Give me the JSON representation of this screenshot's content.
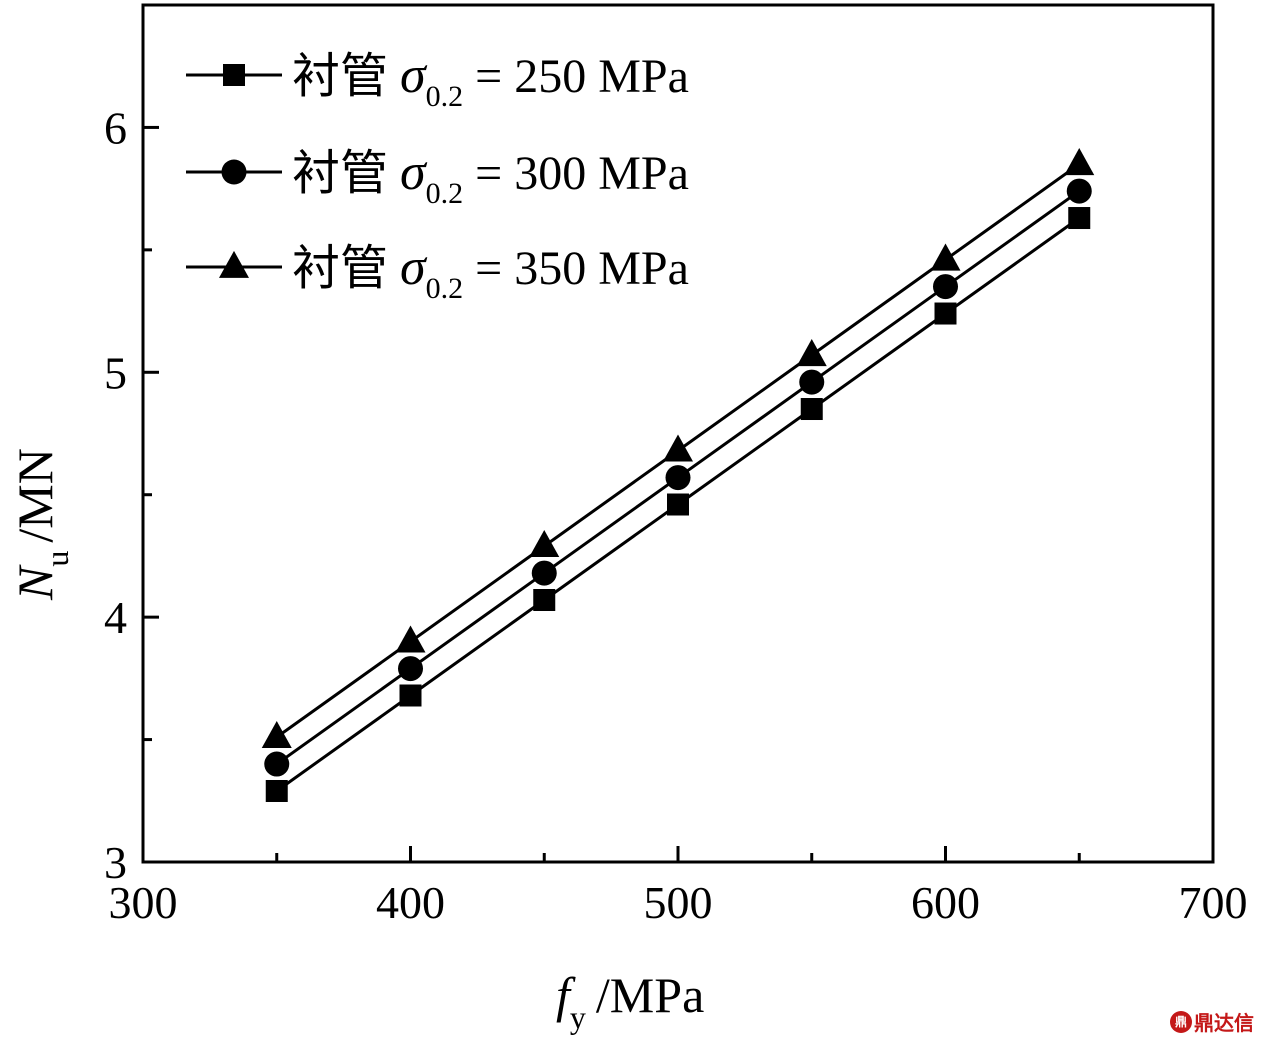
{
  "chart_data": {
    "type": "line",
    "x": [
      350,
      400,
      450,
      500,
      550,
      600,
      650
    ],
    "xlabel_main": "f",
    "xlabel_sub": "y",
    "xlabel_unit": "/MPa",
    "ylabel_main": "N",
    "ylabel_sub": "u",
    "ylabel_unit": "/MN",
    "xlim": [
      300,
      700
    ],
    "ylim": [
      3,
      6.5
    ],
    "xticks": [
      300,
      400,
      500,
      600,
      700
    ],
    "yticks": [
      3,
      4,
      5,
      6
    ],
    "yminor": [
      3.5,
      4.5,
      5.5
    ],
    "xminor": [
      350,
      450,
      550,
      650
    ],
    "grid": false,
    "legend_position": "top-left",
    "series": [
      {
        "name": "衬管 σ0.2 = 250 MPa",
        "label_prefix": "衬管 ",
        "label_sigma": "σ",
        "label_sub": "0.2",
        "label_suffix": " = 250 MPa",
        "marker": "square",
        "values": [
          3.29,
          3.68,
          4.07,
          4.46,
          4.85,
          5.24,
          5.63
        ]
      },
      {
        "name": "衬管 σ0.2 = 300 MPa",
        "label_prefix": "衬管 ",
        "label_sigma": "σ",
        "label_sub": "0.2",
        "label_suffix": " = 300 MPa",
        "marker": "circle",
        "values": [
          3.4,
          3.79,
          4.18,
          4.57,
          4.96,
          5.35,
          5.74
        ]
      },
      {
        "name": "衬管 σ0.2 = 350 MPa",
        "label_prefix": "衬管 ",
        "label_sigma": "σ",
        "label_sub": "0.2",
        "label_suffix": " = 350 MPa",
        "marker": "triangle",
        "values": [
          3.51,
          3.9,
          4.29,
          4.68,
          5.07,
          5.46,
          5.85
        ]
      }
    ]
  },
  "watermark": {
    "logo": "鼎",
    "text": "鼎达信"
  },
  "colors": {
    "ink": "#000000",
    "watermark": "#c41818"
  }
}
